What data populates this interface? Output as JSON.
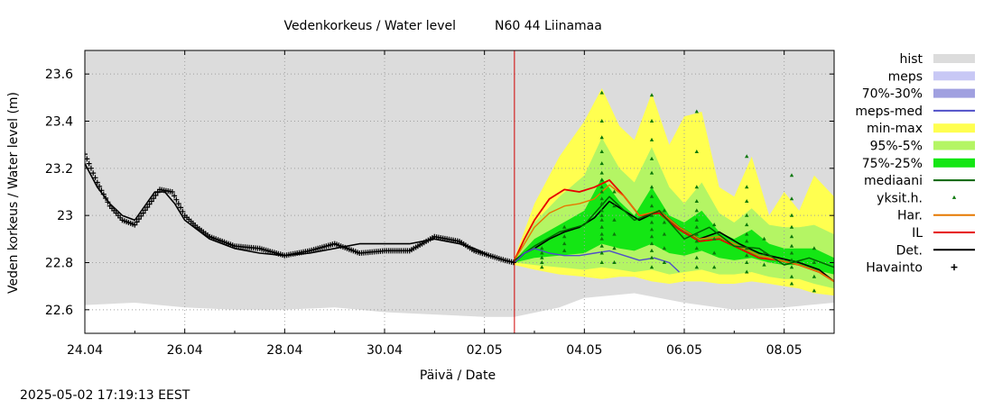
{
  "chart_data": {
    "type": "line",
    "title": "Vedenkorkeus / Water level",
    "subtitle": "N60 44 Liinamaa",
    "xlabel": "Päivä / Date",
    "ylabel": "Veden korkeus / Water level (m)",
    "timestamp": "2025-05-02 17:19:13 EEST",
    "x_start": "2025-04-24",
    "x_end": "2025-05-09",
    "x_ticks": [
      "24.04",
      "26.04",
      "28.04",
      "30.04",
      "02.05",
      "04.05",
      "06.05",
      "08.05"
    ],
    "ylim": [
      22.5,
      23.7
    ],
    "y_ticks": [
      22.6,
      22.8,
      23,
      23.2,
      23.4,
      23.6
    ],
    "y_tick_labels": [
      "22.6",
      "22.8",
      "23",
      "23.2",
      "23.4",
      "23.6"
    ],
    "grid": true,
    "legend_position": "right",
    "forecast_start": "2025-05-02 17:00",
    "colors": {
      "hist": "#dcdcdc",
      "meps": "#c8c8f5",
      "p70_30": "#a0a0e0",
      "meps_med": "#5050c8",
      "minmax": "#ffff50",
      "p95_5": "#b4f564",
      "p75_25": "#14e614",
      "mediaani": "#006400",
      "yksit": "#0a780a",
      "har": "#e67800",
      "il": "#e60000",
      "det": "#000000",
      "havainto": "#000000",
      "now_line": "#d00000"
    },
    "legend": [
      {
        "label": "hist",
        "kind": "box",
        "color_key": "hist"
      },
      {
        "label": "meps",
        "kind": "box",
        "color_key": "meps"
      },
      {
        "label": "70%-30%",
        "kind": "box",
        "color_key": "p70_30"
      },
      {
        "label": "meps-med",
        "kind": "line",
        "color_key": "meps_med"
      },
      {
        "label": "min-max",
        "kind": "box",
        "color_key": "minmax"
      },
      {
        "label": "95%-5%",
        "kind": "box",
        "color_key": "p95_5"
      },
      {
        "label": "75%-25%",
        "kind": "box",
        "color_key": "p75_25"
      },
      {
        "label": "mediaani",
        "kind": "line",
        "color_key": "mediaani"
      },
      {
        "label": "yksit.h.",
        "kind": "dot",
        "color_key": "yksit"
      },
      {
        "label": "Har.",
        "kind": "line",
        "color_key": "har"
      },
      {
        "label": "IL",
        "kind": "line",
        "color_key": "il"
      },
      {
        "label": "Det.",
        "kind": "line",
        "color_key": "det"
      },
      {
        "label": "Havainto",
        "kind": "plus",
        "color_key": "havainto"
      }
    ],
    "x_unit": "days after 24.04 00:00",
    "hist_band": {
      "x": [
        0,
        1,
        2,
        3,
        4,
        5,
        6,
        7,
        8,
        8.6,
        9.5,
        10,
        11,
        12,
        13,
        14,
        15
      ],
      "low": [
        22.62,
        22.63,
        22.61,
        22.6,
        22.6,
        22.61,
        22.59,
        22.58,
        22.57,
        22.57,
        22.61,
        22.65,
        22.67,
        22.63,
        22.6,
        22.61,
        22.63
      ],
      "high": [
        23.7,
        23.7,
        23.7,
        23.7,
        23.7,
        23.7,
        23.7,
        23.7,
        23.7,
        23.7,
        23.7,
        23.7,
        23.7,
        23.7,
        23.7,
        23.7,
        23.7
      ]
    },
    "series": [
      {
        "name": "Havainto",
        "x": [
          0,
          0.25,
          0.5,
          0.75,
          1.0,
          1.2,
          1.5,
          1.75,
          2.0,
          2.25,
          2.5,
          3.0,
          3.5,
          4.0,
          4.5,
          5.0,
          5.5,
          6.0,
          6.5,
          7.0,
          7.5,
          7.8,
          8.1,
          8.4,
          8.6
        ],
        "y": [
          23.26,
          23.14,
          23.04,
          22.98,
          22.96,
          23.02,
          23.11,
          23.1,
          23.0,
          22.95,
          22.91,
          22.87,
          22.86,
          22.83,
          22.85,
          22.88,
          22.84,
          22.85,
          22.85,
          22.91,
          22.89,
          22.85,
          22.83,
          22.81,
          22.8
        ]
      },
      {
        "name": "Det.",
        "x": [
          0,
          0.25,
          0.5,
          0.75,
          1.0,
          1.2,
          1.4,
          1.6,
          1.8,
          2.0,
          2.25,
          2.5,
          3.0,
          3.5,
          4.0,
          4.5,
          5.0,
          5.5,
          6.0,
          6.5,
          7.0,
          7.5,
          7.8,
          8.1,
          8.4,
          8.6,
          8.8,
          9.0,
          9.3,
          9.6,
          9.9,
          10.2,
          10.5,
          10.8,
          11.1,
          11.5,
          11.9,
          12.3,
          12.7,
          13.1,
          13.5,
          13.9,
          14.3,
          14.7,
          15
        ],
        "y": [
          23.22,
          23.12,
          23.05,
          23.0,
          22.98,
          23.04,
          23.1,
          23.1,
          23.05,
          22.98,
          22.94,
          22.9,
          22.86,
          22.84,
          22.83,
          22.84,
          22.86,
          22.88,
          22.88,
          22.88,
          22.9,
          22.88,
          22.86,
          22.83,
          22.81,
          22.8,
          22.84,
          22.86,
          22.9,
          22.93,
          22.95,
          22.99,
          23.06,
          23.02,
          22.98,
          23.02,
          22.95,
          22.9,
          22.93,
          22.88,
          22.84,
          22.82,
          22.8,
          22.77,
          22.72
        ]
      },
      {
        "name": "IL",
        "x": [
          8.6,
          8.8,
          9.0,
          9.3,
          9.6,
          9.9,
          10.2,
          10.5,
          10.8,
          11.1,
          11.5,
          11.9,
          12.3,
          12.7,
          13.1,
          13.5,
          13.9,
          14.3,
          14.7,
          15
        ],
        "y": [
          22.81,
          22.9,
          22.98,
          23.07,
          23.11,
          23.1,
          23.12,
          23.15,
          23.08,
          23.0,
          23.01,
          22.94,
          22.89,
          22.9,
          22.86,
          22.82,
          22.81,
          22.79,
          22.76,
          22.72
        ]
      },
      {
        "name": "Har.",
        "x": [
          8.6,
          8.8,
          9.0,
          9.3,
          9.6,
          9.9,
          10.2,
          10.5,
          10.8,
          11.1,
          11.5,
          11.9,
          12.3,
          12.7,
          13.1,
          13.5,
          13.9,
          14.3,
          14.7,
          15
        ],
        "y": [
          22.81,
          22.88,
          22.95,
          23.01,
          23.04,
          23.05,
          23.07,
          23.13,
          23.08,
          23.0,
          23.02,
          22.95,
          22.9,
          22.91,
          22.87,
          22.83,
          22.81,
          22.79,
          22.76,
          22.72
        ]
      },
      {
        "name": "mediaani",
        "x": [
          8.6,
          9.0,
          9.5,
          10.0,
          10.5,
          11.0,
          11.5,
          12.0,
          12.5,
          13.0,
          13.5,
          14.0,
          14.5,
          15
        ],
        "y": [
          22.81,
          22.87,
          22.93,
          22.96,
          23.08,
          22.98,
          23.02,
          22.9,
          22.95,
          22.87,
          22.86,
          22.79,
          22.82,
          22.78
        ]
      },
      {
        "name": "meps-med",
        "x": [
          8.6,
          8.8,
          9.0,
          9.3,
          9.6,
          9.9,
          10.2,
          10.5,
          10.8,
          11.1,
          11.4,
          11.7,
          11.9
        ],
        "y": [
          22.8,
          22.84,
          22.86,
          22.84,
          22.83,
          22.83,
          22.84,
          22.85,
          22.83,
          22.81,
          22.82,
          22.8,
          22.76
        ]
      }
    ],
    "bands": [
      {
        "name": "min-max",
        "x": [
          8.6,
          9.0,
          9.5,
          10.0,
          10.35,
          10.7,
          11.0,
          11.35,
          11.7,
          12.0,
          12.35,
          12.7,
          13.0,
          13.35,
          13.7,
          14.0,
          14.3,
          14.6,
          15
        ],
        "low": [
          22.79,
          22.77,
          22.75,
          22.74,
          22.73,
          22.74,
          22.74,
          22.72,
          22.71,
          22.72,
          22.72,
          22.71,
          22.71,
          22.72,
          22.71,
          22.7,
          22.69,
          22.67,
          22.66
        ],
        "high": [
          22.82,
          23.05,
          23.25,
          23.4,
          23.54,
          23.38,
          23.32,
          23.52,
          23.3,
          23.42,
          23.44,
          23.12,
          23.08,
          23.25,
          23.0,
          23.1,
          23.02,
          23.17,
          23.08
        ]
      },
      {
        "name": "95%-5%",
        "x": [
          8.6,
          9.0,
          9.5,
          10.0,
          10.35,
          10.7,
          11.0,
          11.35,
          11.7,
          12.0,
          12.35,
          12.7,
          13.0,
          13.35,
          13.7,
          14.0,
          14.3,
          14.6,
          15
        ],
        "low": [
          22.8,
          22.79,
          22.78,
          22.77,
          22.78,
          22.77,
          22.76,
          22.77,
          22.75,
          22.76,
          22.77,
          22.75,
          22.75,
          22.76,
          22.74,
          22.73,
          22.73,
          22.71,
          22.69
        ],
        "high": [
          22.81,
          22.97,
          23.08,
          23.17,
          23.33,
          23.2,
          23.14,
          23.29,
          23.12,
          23.05,
          23.14,
          23.01,
          22.97,
          23.03,
          22.96,
          22.95,
          22.95,
          22.96,
          22.92
        ]
      },
      {
        "name": "75%-25%",
        "x": [
          8.6,
          9.0,
          9.5,
          10.0,
          10.35,
          10.7,
          11.0,
          11.35,
          11.7,
          12.0,
          12.35,
          12.7,
          13.0,
          13.35,
          13.7,
          14.0,
          14.3,
          14.6,
          15
        ],
        "low": [
          22.8,
          22.82,
          22.83,
          22.84,
          22.88,
          22.86,
          22.85,
          22.88,
          22.84,
          22.83,
          22.85,
          22.82,
          22.81,
          22.82,
          22.8,
          22.79,
          22.79,
          22.77,
          22.75
        ],
        "high": [
          22.81,
          22.9,
          22.96,
          23.02,
          23.16,
          23.06,
          23.0,
          23.12,
          23.0,
          22.97,
          23.02,
          22.93,
          22.9,
          22.94,
          22.88,
          22.86,
          22.86,
          22.86,
          22.82
        ]
      }
    ],
    "yksit_points": [
      {
        "x": 10.35,
        "y": [
          23.52,
          23.4,
          23.33,
          23.27,
          23.22,
          23.18,
          23.15,
          23.12,
          23.1,
          23.07,
          23.05,
          23.02,
          23.0,
          22.98,
          22.95,
          22.92,
          22.9,
          22.87,
          22.84,
          22.8
        ]
      },
      {
        "x": 11.35,
        "y": [
          23.51,
          23.4,
          23.32,
          23.24,
          23.18,
          23.12,
          23.08,
          23.04,
          23.0,
          22.97,
          22.94,
          22.91,
          22.88,
          22.85,
          22.82,
          22.78
        ]
      },
      {
        "x": 12.25,
        "y": [
          23.44,
          23.27,
          23.12,
          23.06,
          23.02,
          22.98,
          22.95,
          22.92,
          22.89,
          22.86,
          22.82,
          22.78
        ]
      },
      {
        "x": 13.25,
        "y": [
          23.25,
          23.12,
          23.06,
          23.0,
          22.96,
          22.92,
          22.89,
          22.86,
          22.83,
          22.8,
          22.76
        ]
      },
      {
        "x": 14.15,
        "y": [
          23.17,
          23.07,
          23.0,
          22.95,
          22.91,
          22.87,
          22.84,
          22.81,
          22.78,
          22.74,
          22.71
        ]
      },
      {
        "x": 9.15,
        "y": [
          22.86,
          22.84,
          22.82,
          22.8,
          22.78
        ]
      },
      {
        "x": 9.6,
        "y": [
          22.95,
          22.91,
          22.88,
          22.85
        ]
      },
      {
        "x": 10.6,
        "y": [
          23.1,
          23.04,
          22.98,
          22.92,
          22.86,
          22.8
        ]
      },
      {
        "x": 11.6,
        "y": [
          23.02,
          22.97,
          22.92,
          22.86,
          22.8
        ]
      },
      {
        "x": 12.6,
        "y": [
          22.96,
          22.9,
          22.84,
          22.78
        ]
      },
      {
        "x": 13.6,
        "y": [
          22.9,
          22.84,
          22.79
        ]
      },
      {
        "x": 14.6,
        "y": [
          22.86,
          22.8,
          22.74,
          22.68
        ]
      }
    ]
  }
}
